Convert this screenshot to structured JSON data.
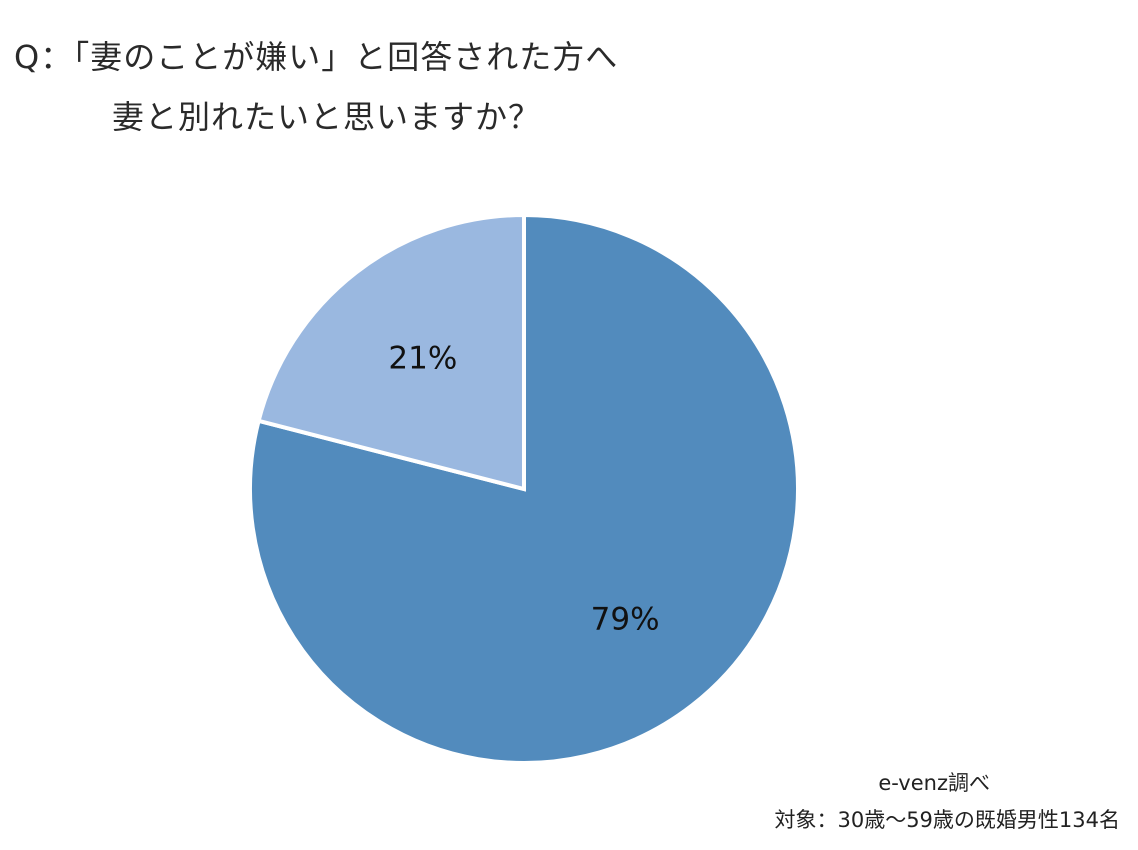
{
  "header": {
    "title_line1": "Q：「妻のことが嫌い」と回答された方へ",
    "title_line2": "妻と別れたいと思いますか？"
  },
  "chart_data": {
    "type": "pie",
    "slices": [
      {
        "label": "79%",
        "value": 79,
        "color": "#528bbd"
      },
      {
        "label": "21%",
        "value": 21,
        "color": "#9ab8e0"
      }
    ],
    "start_angle_deg": 0,
    "direction": "clockwise"
  },
  "footer": {
    "source": "e-venz調べ",
    "sample": "対象：30歳〜59歳の既婚男性134名"
  }
}
